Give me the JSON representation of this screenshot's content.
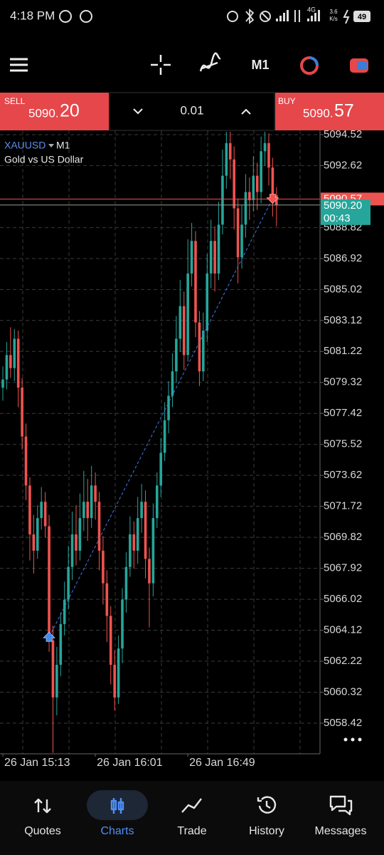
{
  "status_bar": {
    "time": "4:18 PM",
    "network": "4G",
    "speed": "3.6",
    "speed_unit": "K/s",
    "battery": "49"
  },
  "toolbar": {
    "timeframe": "M1"
  },
  "trade_panel": {
    "sell_label": "SELL",
    "sell_price_main": "5090.",
    "sell_price_big": "20",
    "lot": "0.01",
    "buy_label": "BUY",
    "buy_price_main": "5090.",
    "buy_price_big": "57"
  },
  "chart_data": {
    "type": "candlestick",
    "symbol": "XAUUSD",
    "timeframe": "M1",
    "subtitle": "Gold vs US Dollar",
    "up_color": "#26a69a",
    "down_color": "#ef5350",
    "grid": true,
    "categories": [
      "26 Jan 15:13",
      null,
      null,
      null,
      null,
      null,
      null,
      null,
      null,
      null,
      null,
      null,
      null,
      null,
      null,
      null,
      null,
      null,
      null,
      null,
      null,
      null,
      null,
      null,
      "26 Jan 16:01",
      null,
      null,
      null,
      null,
      null,
      null,
      null,
      null,
      null,
      null,
      null,
      null,
      null,
      null,
      null,
      null,
      null,
      null,
      null,
      null,
      null,
      null,
      null,
      "26 Jan 16:49",
      null,
      null,
      null,
      null,
      null,
      null,
      null,
      null,
      null,
      null,
      null,
      null,
      null,
      null,
      null,
      null,
      null,
      null,
      null,
      null,
      null,
      null,
      null
    ],
    "open": [
      5079,
      5079.5,
      5081,
      5080.2,
      5082,
      5079,
      5076,
      5073,
      5070,
      5069,
      5071,
      5072,
      5070.5,
      5063.5,
      5060,
      5062,
      5064.5,
      5066,
      5068,
      5070,
      5069,
      5071,
      5072,
      5071,
      5073,
      5072,
      5069,
      5067,
      5065,
      5062,
      5060,
      5063,
      5066,
      5068,
      5070,
      5069,
      5071,
      5072,
      5068.5,
      5067,
      5071,
      5073,
      5075,
      5077,
      5078.5,
      5080,
      5082,
      5084,
      5081,
      5086,
      5088,
      5083,
      5080,
      5082.5,
      5086,
      5088,
      5086,
      5089,
      5092,
      5094,
      5093,
      5090,
      5087,
      5089,
      5091,
      5090.5,
      5092,
      5091,
      5093.5,
      5094,
      5092.5,
      5090.8
    ],
    "high": [
      5080.3,
      5081.8,
      5082.7,
      5082.6,
      5082.5,
      5079.6,
      5076.8,
      5073.5,
      5071.2,
      5071.8,
      5072.9,
      5072.6,
      5071.2,
      5064.4,
      5063.1,
      5065.2,
      5067.1,
      5069.3,
      5071.4,
      5071.8,
      5072.5,
      5073.9,
      5073.4,
      5074.2,
      5073.8,
      5072.6,
      5069.9,
      5067.8,
      5065.6,
      5062.9,
      5063.8,
      5066.7,
      5068.9,
      5071.1,
      5070.8,
      5072.3,
      5073.1,
      5072.7,
      5069.2,
      5071.9,
      5073.8,
      5075.9,
      5078.1,
      5079.4,
      5081.1,
      5083.4,
      5085.6,
      5084.9,
      5088.1,
      5089.1,
      5088.6,
      5083.7,
      5083.6,
      5087.2,
      5089.3,
      5088.9,
      5090.4,
      5093.6,
      5094.7,
      5094.7,
      5093.8,
      5090.6,
      5090.2,
      5092.1,
      5091.9,
      5093.2,
      5092.8,
      5094.4,
      5094.7,
      5094.6,
      5093.1,
      5091.3
    ],
    "low": [
      5078.2,
      5078.9,
      5079.6,
      5079.4,
      5077.8,
      5075.2,
      5072.1,
      5068.4,
      5067.6,
      5068.5,
      5070.3,
      5069.8,
      5062.8,
      5056.6,
      5058.9,
      5061.3,
      5063.8,
      5065.4,
      5067.2,
      5068.1,
      5068.4,
      5070.2,
      5069.6,
      5070.4,
      5070.9,
      5067.8,
      5065.7,
      5063.4,
      5060.8,
      5059.2,
      5059.6,
      5062.1,
      5065.2,
      5067.4,
      5067.9,
      5068.2,
      5070.1,
      5067.3,
      5064.3,
      5066.2,
      5070.4,
      5072.3,
      5074.5,
      5076.2,
      5077.8,
      5079.3,
      5081.2,
      5080.1,
      5080.6,
      5085.2,
      5082.1,
      5079.1,
      5079.4,
      5081.8,
      5085.1,
      5084.9,
      5085.6,
      5088.4,
      5091.2,
      5091.8,
      5088.7,
      5085.4,
      5086.3,
      5088.2,
      5089.3,
      5089.8,
      5089.9,
      5090.3,
      5092.6,
      5091.4,
      5089.5,
      5088.9
    ],
    "close": [
      5079.5,
      5081,
      5080.2,
      5082,
      5079,
      5076,
      5073,
      5070,
      5069,
      5071,
      5072,
      5070.5,
      5063.5,
      5060,
      5062,
      5064.5,
      5066,
      5068,
      5070,
      5069,
      5071,
      5072,
      5071,
      5073,
      5072,
      5069,
      5067,
      5065,
      5062,
      5060,
      5063,
      5066,
      5068,
      5070,
      5069,
      5071,
      5072,
      5068.5,
      5067,
      5071,
      5073,
      5075,
      5077,
      5078.5,
      5080,
      5082,
      5084,
      5081,
      5086,
      5088,
      5083,
      5080,
      5082.5,
      5086,
      5088,
      5086,
      5089,
      5092,
      5094,
      5093,
      5090,
      5087,
      5089,
      5091,
      5090.5,
      5092,
      5091,
      5093.5,
      5094,
      5092.5,
      5090.8,
      5090.2
    ],
    "ylim": [
      5056.54,
      5094.78
    ],
    "yticks": [
      5094.52,
      5092.62,
      5088.82,
      5086.92,
      5085.02,
      5083.12,
      5081.22,
      5079.32,
      5077.42,
      5075.52,
      5073.62,
      5071.72,
      5069.82,
      5067.92,
      5066.02,
      5064.12,
      5062.22,
      5060.32,
      5058.42
    ],
    "ask": 5090.57,
    "ask_color": "#ef5350",
    "bid": {
      "value": 5090.2,
      "label": "5090.20"
    },
    "bid_color": "#26a69a",
    "countdown": "00:43",
    "trade": {
      "entry_index": 12,
      "entry_price": 5063.7,
      "exit_index": 70,
      "exit_price": 5090.6
    }
  },
  "nav": {
    "items": [
      "Quotes",
      "Charts",
      "Trade",
      "History",
      "Messages"
    ],
    "active": 1
  }
}
